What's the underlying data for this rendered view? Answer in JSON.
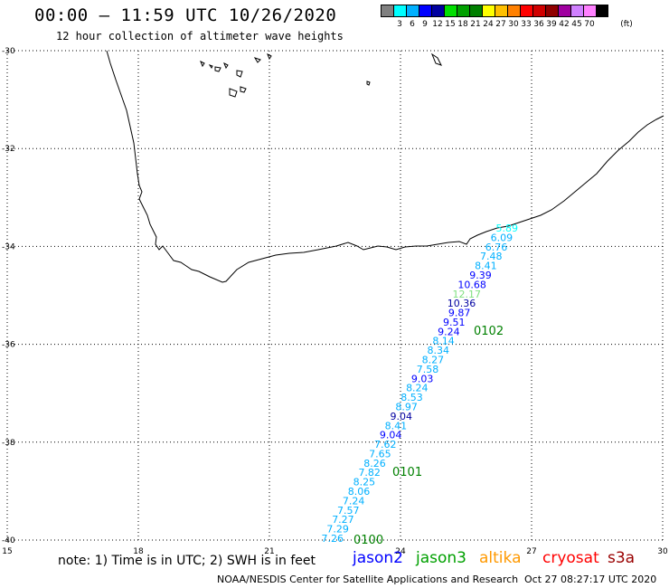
{
  "header": {
    "title": "00:00 – 11:59 UTC 10/26/2020",
    "subtitle": "12 hour collection of altimeter wave heights"
  },
  "legend_scale": {
    "unit": "(ft)",
    "swatches": [
      {
        "color": "#808080",
        "label": ""
      },
      {
        "color": "#00ffff",
        "label": "3"
      },
      {
        "color": "#00b0ff",
        "label": "6"
      },
      {
        "color": "#0000ff",
        "label": "9"
      },
      {
        "color": "#0000a0",
        "label": "12"
      },
      {
        "color": "#00e000",
        "label": "15"
      },
      {
        "color": "#00a000",
        "label": "18"
      },
      {
        "color": "#008000",
        "label": "21"
      },
      {
        "color": "#ffff00",
        "label": "24"
      },
      {
        "color": "#ffc000",
        "label": "27"
      },
      {
        "color": "#ff8000",
        "label": "30"
      },
      {
        "color": "#ff0000",
        "label": "33"
      },
      {
        "color": "#d00000",
        "label": "36"
      },
      {
        "color": "#900000",
        "label": "39"
      },
      {
        "color": "#a000a0",
        "label": "42"
      },
      {
        "color": "#d080ff",
        "label": "45"
      },
      {
        "color": "#ff80ff",
        "label": "70"
      },
      {
        "color": "#000000",
        "label": ""
      }
    ]
  },
  "map": {
    "lat_labels": [
      "-30",
      "-32",
      "-34",
      "-36",
      "-38",
      "-40"
    ],
    "lon_labels": [
      "15",
      "18",
      "21",
      "24",
      "27",
      "30"
    ],
    "lat_range": [
      -40,
      -30
    ],
    "lon_range": [
      15,
      30
    ]
  },
  "track": {
    "time_labels": [
      {
        "text": "0102",
        "color": "#008000"
      },
      {
        "text": "0101",
        "color": "#008000"
      },
      {
        "text": "0100",
        "color": "#008000"
      }
    ],
    "readings": [
      {
        "v": "5.89",
        "c": "#00ffff"
      },
      {
        "v": "6.09",
        "c": "#00b0ff"
      },
      {
        "v": "6.76",
        "c": "#00b0ff"
      },
      {
        "v": "7.48",
        "c": "#00b0ff"
      },
      {
        "v": "8.41",
        "c": "#00b0ff"
      },
      {
        "v": "9.39",
        "c": "#0000ff"
      },
      {
        "v": "10.68",
        "c": "#0000ff"
      },
      {
        "v": "12.17",
        "c": "#80e080"
      },
      {
        "v": "10.36",
        "c": "#0000a0"
      },
      {
        "v": "9.87",
        "c": "#0000ff"
      },
      {
        "v": "9.51",
        "c": "#0000ff"
      },
      {
        "v": "9.24",
        "c": "#0000ff"
      },
      {
        "v": "8.14",
        "c": "#00b0ff"
      },
      {
        "v": "8.34",
        "c": "#00b0ff"
      },
      {
        "v": "8.27",
        "c": "#00b0ff"
      },
      {
        "v": "7.58",
        "c": "#00b0ff"
      },
      {
        "v": "9.03",
        "c": "#0000ff"
      },
      {
        "v": "8.24",
        "c": "#00b0ff"
      },
      {
        "v": "8.53",
        "c": "#00b0ff"
      },
      {
        "v": "8.97",
        "c": "#00b0ff"
      },
      {
        "v": "9.04",
        "c": "#0000a0"
      },
      {
        "v": "8.41",
        "c": "#00b0ff"
      },
      {
        "v": "9.04",
        "c": "#0000ff"
      },
      {
        "v": "7.62",
        "c": "#00b0ff"
      },
      {
        "v": "7.65",
        "c": "#00b0ff"
      },
      {
        "v": "8.26",
        "c": "#00b0ff"
      },
      {
        "v": "7.82",
        "c": "#00b0ff"
      },
      {
        "v": "8.25",
        "c": "#00b0ff"
      },
      {
        "v": "8.06",
        "c": "#00b0ff"
      },
      {
        "v": "7.24",
        "c": "#00b0ff"
      },
      {
        "v": "7.57",
        "c": "#00b0ff"
      },
      {
        "v": "7.27",
        "c": "#00b0ff"
      },
      {
        "v": "7.29",
        "c": "#00b0ff"
      },
      {
        "v": "7.26",
        "c": "#00b0ff"
      }
    ]
  },
  "notes": {
    "text": "note:  1) Time is in UTC;  2) SWH is in feet",
    "satellites": [
      {
        "name": "jason2",
        "color": "#0000ff"
      },
      {
        "name": "jason3",
        "color": "#00a000"
      },
      {
        "name": "altika",
        "color": "#ff9900"
      },
      {
        "name": "cryosat",
        "color": "#ff0000"
      },
      {
        "name": "s3a",
        "color": "#990000"
      }
    ],
    "source": "NOAA/NESDIS Center for Satellite Applications and Research",
    "timestamp": "Oct 27 08:27:17 UTC 2020"
  }
}
